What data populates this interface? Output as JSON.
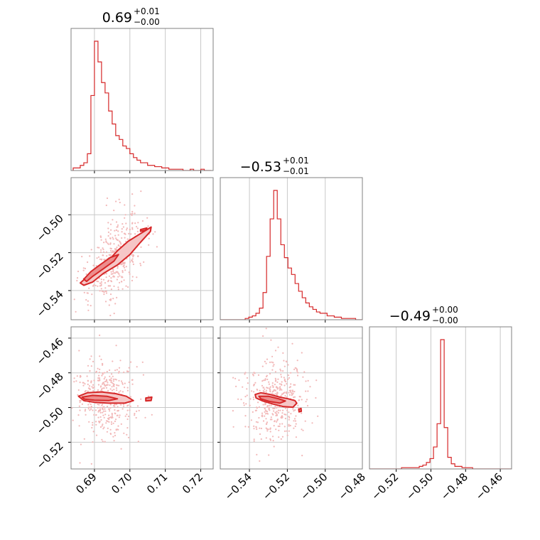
{
  "colors": {
    "accent": "#d62728",
    "fill_inner": "#ec8d8d",
    "fill_outer": "#f6c6c6",
    "points": "#f2b8b8",
    "grid": "#c8c8c8",
    "frame": "#808080"
  },
  "chart_data": {
    "type": "corner",
    "grid": true,
    "parameters": [
      {
        "median": "0.69",
        "plus": "+0.01",
        "minus": "−0.00",
        "range": [
          0.6834,
          0.7235
        ],
        "ticks": [
          0.69,
          0.7,
          0.71,
          0.72
        ],
        "tick_labels": [
          "0.69",
          "0.70",
          "0.71",
          "0.72"
        ]
      },
      {
        "median": "−0.53",
        "plus": "+0.01",
        "minus": "−0.01",
        "range": [
          -0.5554,
          -0.4804
        ],
        "ticks": [
          -0.54,
          -0.52,
          -0.5,
          -0.48
        ],
        "tick_labels": [
          "−0.54",
          "−0.52",
          "−0.50",
          "−0.48"
        ]
      },
      {
        "median": "−0.49",
        "plus": "+0.00",
        "minus": "−0.00",
        "range": [
          -0.5354,
          -0.4535
        ],
        "ticks": [
          -0.52,
          -0.5,
          -0.48,
          -0.46
        ],
        "tick_labels": [
          "−0.52",
          "−0.50",
          "−0.48",
          "−0.46"
        ]
      }
    ],
    "histograms": [
      {
        "param": 0,
        "bin_width": 0.001,
        "start": 0.684,
        "counts": [
          0.02,
          0.02,
          0.04,
          0.06,
          0.13,
          0.58,
          1.0,
          0.84,
          0.68,
          0.6,
          0.46,
          0.36,
          0.27,
          0.24,
          0.19,
          0.17,
          0.13,
          0.1,
          0.08,
          0.06,
          0.06,
          0.04,
          0.04,
          0.03,
          0.03,
          0.02,
          0.02,
          0.01,
          0.01,
          0.01,
          0.01,
          0.0,
          0.0,
          0.01,
          0.0,
          0.0,
          0.01,
          0.0,
          0.0
        ]
      },
      {
        "param": 1,
        "bin_width": 0.00188,
        "start": -0.5554,
        "counts": [
          0.0,
          0.0,
          0.0,
          0.0,
          0.0,
          0.0,
          0.0,
          0.01,
          0.02,
          0.03,
          0.05,
          0.09,
          0.21,
          0.49,
          0.78,
          1.0,
          0.78,
          0.58,
          0.48,
          0.4,
          0.35,
          0.28,
          0.22,
          0.17,
          0.13,
          0.1,
          0.08,
          0.06,
          0.05,
          0.05,
          0.03,
          0.03,
          0.02,
          0.02,
          0.01,
          0.01,
          0.01,
          0.01,
          0.0,
          0.0
        ]
      },
      {
        "param": 2,
        "bin_width": 0.00205,
        "start": -0.5354,
        "counts": [
          0.0,
          0.0,
          0.0,
          0.0,
          0.0,
          0.0,
          0.0,
          0.0,
          0.0,
          0.01,
          0.01,
          0.01,
          0.01,
          0.01,
          0.02,
          0.03,
          0.05,
          0.08,
          0.17,
          0.35,
          1.0,
          0.32,
          0.09,
          0.04,
          0.02,
          0.02,
          0.01,
          0.01,
          0.01,
          0.0,
          0.0,
          0.0,
          0.0,
          0.0,
          0.0,
          0.0,
          0.0,
          0.0,
          0.0,
          0.0
        ]
      }
    ],
    "contours": [
      {
        "x_param": 0,
        "y_param": 1,
        "outer": [
          [
            0.686,
            -0.536
          ],
          [
            0.6875,
            -0.5335
          ],
          [
            0.69,
            -0.53
          ],
          [
            0.6935,
            -0.525
          ],
          [
            0.6965,
            -0.519
          ],
          [
            0.6995,
            -0.514
          ],
          [
            0.7025,
            -0.5105
          ],
          [
            0.706,
            -0.5065
          ],
          [
            0.7058,
            -0.5088
          ],
          [
            0.703,
            -0.5145
          ],
          [
            0.7,
            -0.521
          ],
          [
            0.6965,
            -0.5265
          ],
          [
            0.6925,
            -0.531
          ],
          [
            0.6895,
            -0.5355
          ],
          [
            0.687,
            -0.5372
          ]
        ],
        "inner": [
          [
            0.687,
            -0.534
          ],
          [
            0.689,
            -0.53
          ],
          [
            0.6915,
            -0.5265
          ],
          [
            0.6945,
            -0.5225
          ],
          [
            0.6968,
            -0.521
          ],
          [
            0.6955,
            -0.5245
          ],
          [
            0.6925,
            -0.5285
          ],
          [
            0.6895,
            -0.5325
          ],
          [
            0.6878,
            -0.5352
          ]
        ],
        "blobs": [
          [
            [
              0.703,
              -0.5078
            ],
            [
              0.7048,
              -0.507
            ],
            [
              0.7044,
              -0.5082
            ],
            [
              0.703,
              -0.5087
            ]
          ]
        ]
      },
      {
        "x_param": 0,
        "y_param": 2,
        "outer": [
          [
            0.6855,
            -0.4935
          ],
          [
            0.688,
            -0.4915
          ],
          [
            0.692,
            -0.491
          ],
          [
            0.696,
            -0.492
          ],
          [
            0.699,
            -0.4935
          ],
          [
            0.701,
            -0.496
          ],
          [
            0.6985,
            -0.4975
          ],
          [
            0.694,
            -0.4975
          ],
          [
            0.69,
            -0.497
          ],
          [
            0.687,
            -0.496
          ]
        ],
        "inner": [
          [
            0.6865,
            -0.494
          ],
          [
            0.6895,
            -0.493
          ],
          [
            0.6935,
            -0.4935
          ],
          [
            0.6965,
            -0.495
          ],
          [
            0.694,
            -0.496
          ],
          [
            0.69,
            -0.4958
          ],
          [
            0.6872,
            -0.4952
          ]
        ],
        "blobs": [
          [
            [
              0.7045,
              -0.4945
            ],
            [
              0.7062,
              -0.494
            ],
            [
              0.706,
              -0.496
            ],
            [
              0.7045,
              -0.4962
            ]
          ]
        ]
      },
      {
        "x_param": 1,
        "y_param": 2,
        "outer": [
          [
            -0.537,
            -0.4925
          ],
          [
            -0.534,
            -0.4915
          ],
          [
            -0.529,
            -0.4925
          ],
          [
            -0.524,
            -0.494
          ],
          [
            -0.5195,
            -0.495
          ],
          [
            -0.516,
            -0.496
          ],
          [
            -0.515,
            -0.4975
          ],
          [
            -0.517,
            -0.4998
          ],
          [
            -0.522,
            -0.4995
          ],
          [
            -0.5275,
            -0.498
          ],
          [
            -0.533,
            -0.4962
          ],
          [
            -0.5365,
            -0.4945
          ]
        ],
        "inner": [
          [
            -0.535,
            -0.4935
          ],
          [
            -0.53,
            -0.4935
          ],
          [
            -0.5245,
            -0.495
          ],
          [
            -0.521,
            -0.4962
          ],
          [
            -0.524,
            -0.4975
          ],
          [
            -0.5295,
            -0.4965
          ],
          [
            -0.534,
            -0.495
          ]
        ],
        "blobs": [
          [
            [
              -0.514,
              -0.501
            ],
            [
              -0.5128,
              -0.5005
            ],
            [
              -0.5126,
              -0.5022
            ],
            [
              -0.5138,
              -0.5025
            ]
          ]
        ]
      }
    ]
  }
}
